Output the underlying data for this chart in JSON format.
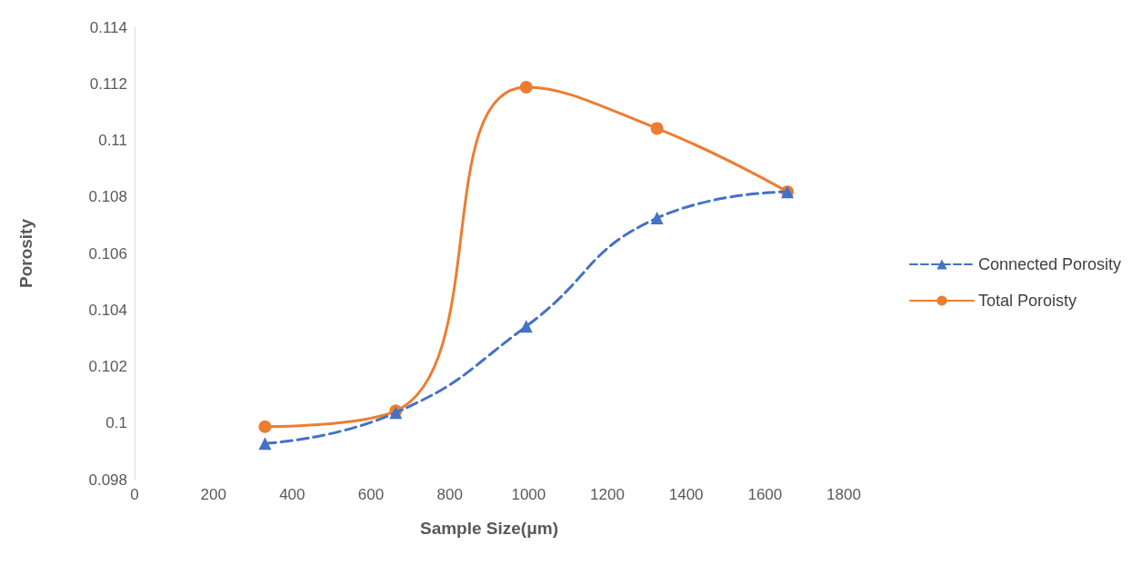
{
  "chart_data": {
    "type": "line",
    "xlabel": "Sample Size(μm)",
    "ylabel": "Porosity",
    "xlim": [
      0,
      1800
    ],
    "xticks": [
      0,
      200,
      400,
      600,
      800,
      1000,
      1200,
      1400,
      1600,
      1800
    ],
    "ylim": [
      0.098,
      0.114
    ],
    "yticks": [
      0.098,
      0.1,
      0.102,
      0.104,
      0.106,
      0.108,
      0.11,
      0.112,
      0.114
    ],
    "grid": false,
    "legend": "right",
    "series": [
      {
        "name": "Connected Porosity",
        "color": "#4472c4",
        "marker": "triangle",
        "line_style": "dashed",
        "x": [
          331,
          663,
          994,
          1326,
          1657
        ],
        "values": [
          0.09928,
          0.10037,
          0.10342,
          0.10725,
          0.10818
        ]
      },
      {
        "name": "Total Poroisty",
        "color": "#ed7d31",
        "marker": "circle",
        "line_style": "solid",
        "x": [
          331,
          663,
          994,
          1326,
          1657
        ],
        "values": [
          0.09987,
          0.10043,
          0.11188,
          0.11042,
          0.10818
        ]
      }
    ]
  }
}
